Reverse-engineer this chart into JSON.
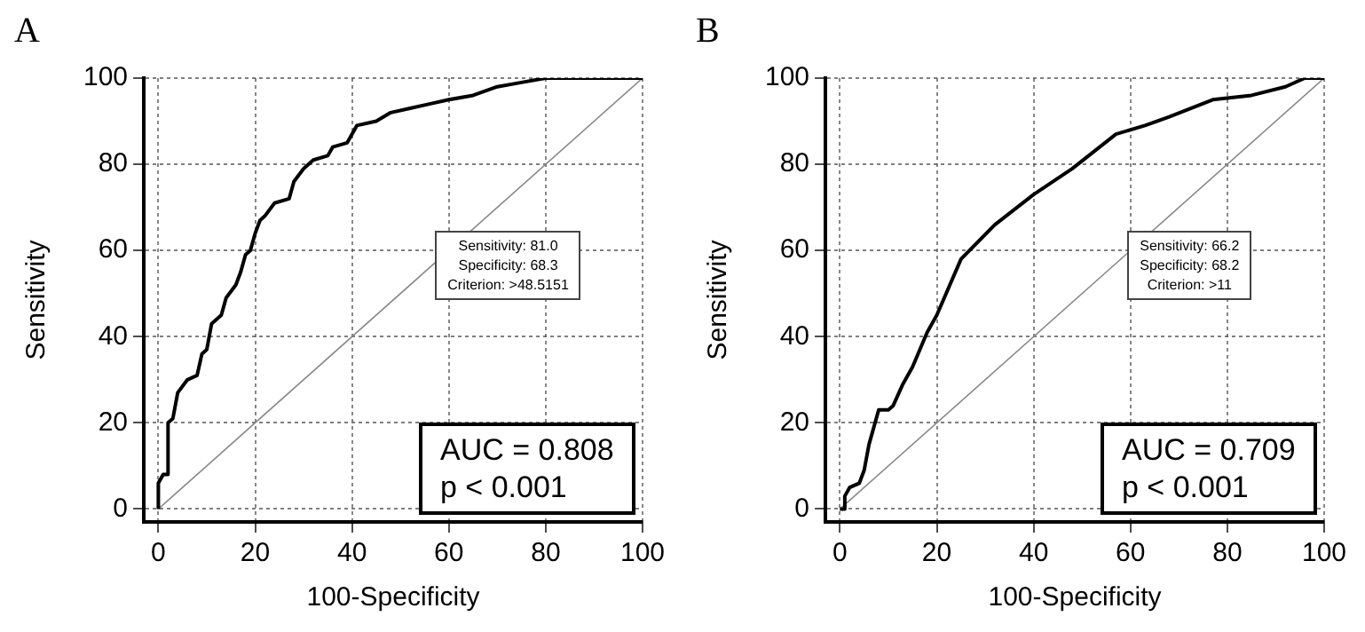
{
  "chart_data": [
    {
      "type": "line",
      "title": "A",
      "xlabel": "100-Specificity",
      "ylabel": "Sensitivity",
      "xlim": [
        -3,
        100
      ],
      "ylim": [
        -3,
        100
      ],
      "xticks": [
        0,
        20,
        40,
        60,
        80,
        100
      ],
      "yticks": [
        0,
        20,
        40,
        60,
        80,
        100
      ],
      "grid": true,
      "marker": "none",
      "line_style": "solid",
      "series": [
        {
          "color": "#000000",
          "x": [
            0,
            0,
            1,
            2,
            2,
            3,
            4,
            6,
            8,
            9,
            10,
            11,
            13,
            14,
            16,
            17,
            18,
            19,
            20,
            21,
            22,
            24,
            27,
            28,
            30,
            32,
            35,
            36,
            39,
            41,
            45,
            48,
            52,
            56,
            60,
            65,
            70,
            75,
            80,
            100
          ],
          "values": [
            0,
            6,
            8,
            8,
            20,
            21,
            27,
            30,
            31,
            36,
            37,
            43,
            45,
            49,
            52,
            55,
            59,
            60,
            64,
            67,
            68,
            71,
            72,
            76,
            79,
            81,
            82,
            84,
            85,
            89,
            90,
            92,
            93,
            94,
            95,
            96,
            98,
            99,
            100,
            100
          ]
        },
        {
          "color": "#888888",
          "x": [
            0,
            100
          ],
          "values": [
            0,
            100
          ]
        }
      ],
      "annotations": [
        "Sensitivity: 81.0\nSpecificity: 68.3\nCriterion: >48.5151",
        "AUC = 0.808\n p < 0.001"
      ]
    },
    {
      "type": "line",
      "title": "B",
      "xlabel": "100-Specificity",
      "ylabel": "Sensitivity",
      "xlim": [
        -3,
        100
      ],
      "ylim": [
        -3,
        100
      ],
      "xticks": [
        0,
        20,
        40,
        60,
        80,
        100
      ],
      "yticks": [
        0,
        20,
        40,
        60,
        80,
        100
      ],
      "grid": true,
      "marker": "none",
      "line_style": "solid",
      "series": [
        {
          "color": "#000000",
          "x": [
            0,
            1,
            1,
            2,
            4,
            5,
            6,
            8,
            10,
            11,
            13,
            15,
            18,
            20,
            25,
            32,
            40,
            48,
            57,
            63,
            68,
            77,
            85,
            92,
            96,
            100
          ],
          "values": [
            0,
            0,
            3,
            5,
            6,
            9,
            15,
            23,
            23,
            24,
            29,
            33,
            41,
            45,
            58,
            66,
            73,
            79,
            87,
            89,
            91,
            95,
            96,
            98,
            100,
            100
          ]
        },
        {
          "color": "#888888",
          "x": [
            0,
            100
          ],
          "values": [
            0,
            100
          ]
        }
      ],
      "annotations": [
        "Sensitivity: 66.2\nSpecificity: 68.2\nCriterion: >11",
        "AUC = 0.709\n p < 0.001"
      ]
    }
  ]
}
